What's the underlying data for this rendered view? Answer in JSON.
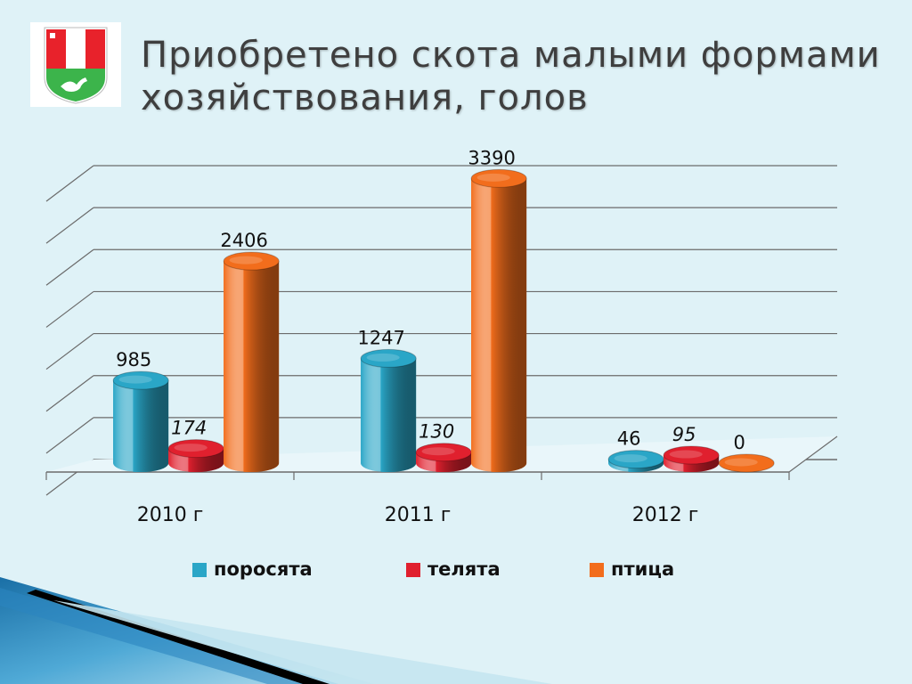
{
  "slide": {
    "title": "Приобретено скота малыми формами хозяйствования, голов",
    "emblem_icon": "coat-of-arms-icon"
  },
  "chart_data": {
    "type": "bar",
    "categories": [
      "2010 г",
      "2011 г",
      "2012 г"
    ],
    "series": [
      {
        "name": "поросята",
        "values": [
          985,
          1247,
          46
        ],
        "color": "#2aa6c7"
      },
      {
        "name": "телята",
        "values": [
          174,
          130,
          95
        ],
        "color": "#e0202e"
      },
      {
        "name": "птица",
        "values": [
          2406,
          3390,
          0
        ],
        "color": "#f26d1c"
      }
    ],
    "data_labels": {
      "поросята": [
        "985",
        "1247",
        "46"
      ],
      "телята": [
        "174",
        "130",
        "95"
      ],
      "птица": [
        "2406",
        "3390",
        "0"
      ]
    },
    "title": "",
    "xlabel": "",
    "ylabel": "",
    "ylim": [
      0,
      3500
    ],
    "grid": true,
    "three_d": true,
    "legend": "bottom"
  }
}
